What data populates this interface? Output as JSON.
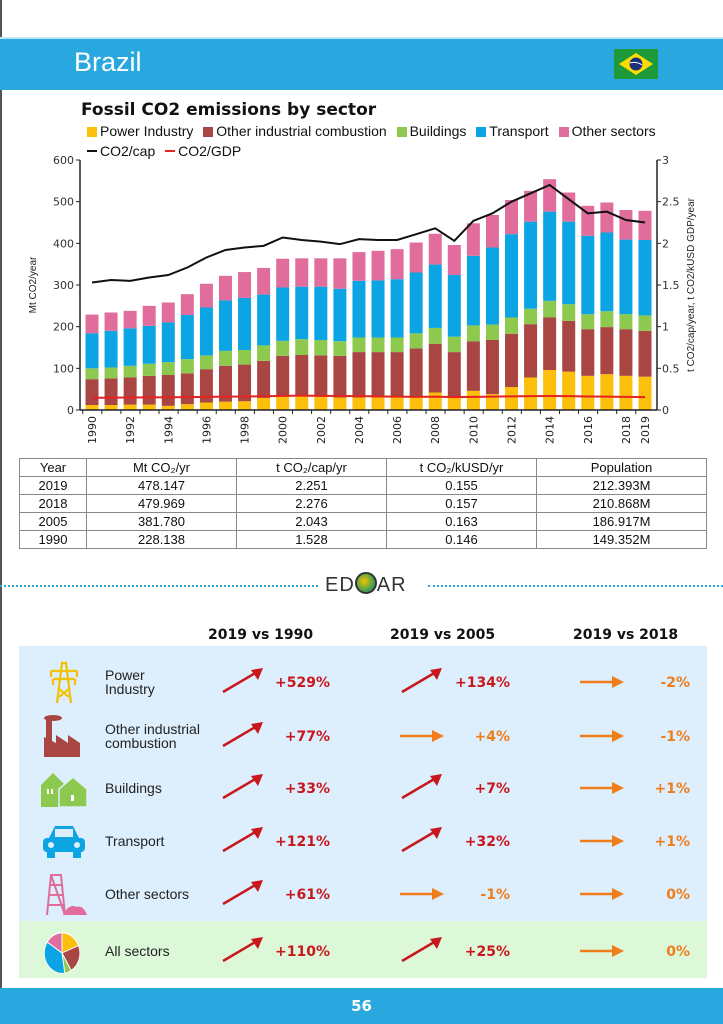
{
  "header": {
    "title": "Brazil",
    "flag": "brazil-flag"
  },
  "chart_data": {
    "type": "bar",
    "stacked": true,
    "title": "Fossil CO2 emissions by sector",
    "ylabel": "Mt CO2/year",
    "y2label": "t CO2/cap/year, t CO2/kUSD GDP/year",
    "ylim": [
      0,
      600
    ],
    "y2lim": [
      0,
      3
    ],
    "yticks": [
      "0",
      "100",
      "200",
      "300",
      "400",
      "500",
      "600"
    ],
    "y2ticks": [
      "0",
      "0.5",
      "1",
      "1.5",
      "2",
      "2.5",
      "3"
    ],
    "categories": [
      "1990",
      "1991",
      "1992",
      "1993",
      "1994",
      "1995",
      "1996",
      "1997",
      "1998",
      "1999",
      "2000",
      "2001",
      "2002",
      "2003",
      "2004",
      "2005",
      "2006",
      "2007",
      "2008",
      "2009",
      "2010",
      "2011",
      "2012",
      "2013",
      "2014",
      "2015",
      "2016",
      "2017",
      "2018",
      "2019"
    ],
    "xtick_labels": [
      "1990",
      "1992",
      "1994",
      "1996",
      "1998",
      "2000",
      "2002",
      "2004",
      "2006",
      "2008",
      "2010",
      "2012",
      "2014",
      "2016",
      "2018",
      "2019"
    ],
    "series": [
      {
        "name": "Power Industry",
        "color": "#fbbf0c",
        "values": [
          12,
          12,
          13,
          13,
          10,
          14,
          18,
          20,
          21,
          29,
          32,
          36,
          32,
          30,
          30,
          30,
          30,
          30,
          42,
          30,
          46,
          38,
          55,
          78,
          96,
          92,
          82,
          86,
          82,
          80
        ]
      },
      {
        "name": "Other industrial combustion",
        "color": "#a94644",
        "values": [
          62,
          64,
          65,
          69,
          74,
          74,
          80,
          86,
          88,
          89,
          98,
          96,
          99,
          100,
          109,
          109,
          109,
          118,
          117,
          109,
          119,
          130,
          128,
          128,
          126,
          122,
          112,
          113,
          112,
          110
        ]
      },
      {
        "name": "Buildings",
        "color": "#8dc94e",
        "values": [
          26,
          26,
          28,
          29,
          31,
          34,
          33,
          36,
          35,
          37,
          36,
          38,
          37,
          35,
          35,
          35,
          35,
          36,
          38,
          37,
          38,
          37,
          39,
          37,
          40,
          40,
          36,
          38,
          36,
          37
        ]
      },
      {
        "name": "Transport",
        "color": "#0ba5e4",
        "values": [
          84,
          88,
          90,
          91,
          95,
          106,
          115,
          121,
          125,
          122,
          128,
          126,
          128,
          126,
          136,
          137,
          140,
          146,
          152,
          148,
          167,
          185,
          200,
          209,
          214,
          198,
          188,
          189,
          179,
          181
        ]
      },
      {
        "name": "Other sectors",
        "color": "#e06d9c",
        "values": [
          45,
          44,
          42,
          48,
          48,
          50,
          57,
          59,
          62,
          64,
          69,
          68,
          68,
          73,
          69,
          71,
          72,
          72,
          74,
          72,
          78,
          78,
          82,
          74,
          78,
          70,
          72,
          72,
          71,
          70
        ]
      }
    ],
    "lines": [
      {
        "name": "CO2/cap",
        "color": "#111111",
        "axis": "right",
        "values": [
          1.53,
          1.56,
          1.55,
          1.59,
          1.62,
          1.71,
          1.83,
          1.92,
          1.95,
          1.97,
          2.07,
          2.04,
          2.02,
          1.99,
          2.05,
          2.04,
          2.04,
          2.11,
          2.18,
          2.03,
          2.27,
          2.36,
          2.5,
          2.6,
          2.7,
          2.53,
          2.36,
          2.38,
          2.28,
          2.25
        ]
      },
      {
        "name": "CO2/GDP",
        "color": "#e3231f",
        "axis": "right",
        "values": [
          0.146,
          0.148,
          0.15,
          0.152,
          0.153,
          0.155,
          0.158,
          0.16,
          0.162,
          0.165,
          0.17,
          0.172,
          0.17,
          0.168,
          0.166,
          0.163,
          0.16,
          0.158,
          0.16,
          0.155,
          0.158,
          0.16,
          0.164,
          0.166,
          0.168,
          0.166,
          0.162,
          0.16,
          0.157,
          0.155
        ]
      }
    ],
    "legend": [
      "Power Industry",
      "Other industrial combustion",
      "Buildings",
      "Transport",
      "Other sectors",
      "CO2/cap",
      "CO2/GDP"
    ]
  },
  "table": {
    "headers": [
      "Year",
      "Mt CO₂/yr",
      "t CO₂/cap/yr",
      "t CO₂/kUSD/yr",
      "Population"
    ],
    "rows": [
      [
        "2019",
        "478.147",
        "2.251",
        "0.155",
        "212.393M"
      ],
      [
        "2018",
        "479.969",
        "2.276",
        "0.157",
        "210.868M"
      ],
      [
        "2005",
        "381.780",
        "2.043",
        "0.163",
        "186.917M"
      ],
      [
        "1990",
        "228.138",
        "1.528",
        "0.146",
        "149.352M"
      ]
    ]
  },
  "logo": {
    "text_left": "ED",
    "text_right": "AR"
  },
  "comparison": {
    "columns": [
      "2019 vs 1990",
      "2019 vs 2005",
      "2019 vs 2018"
    ],
    "rows": [
      {
        "sector": "Power Industry",
        "icon": "power-pylon-icon",
        "values": [
          "+529%",
          "+134%",
          "-2%"
        ],
        "trends": [
          "up",
          "up",
          "flat"
        ]
      },
      {
        "sector": "Other industrial combustion",
        "icon": "factory-icon",
        "values": [
          "+77%",
          "+4%",
          "-1%"
        ],
        "trends": [
          "up",
          "flat",
          "flat"
        ]
      },
      {
        "sector": "Buildings",
        "icon": "houses-icon",
        "values": [
          "+33%",
          "+7%",
          "+1%"
        ],
        "trends": [
          "up",
          "up",
          "flat"
        ]
      },
      {
        "sector": "Transport",
        "icon": "car-icon",
        "values": [
          "+121%",
          "+32%",
          "+1%"
        ],
        "trends": [
          "up",
          "up",
          "flat"
        ]
      },
      {
        "sector": "Other sectors",
        "icon": "mine-tower-icon",
        "values": [
          "+61%",
          "-1%",
          "0%"
        ],
        "trends": [
          "up",
          "flat",
          "flat"
        ]
      },
      {
        "sector": "All sectors",
        "icon": "pie-chart-icon",
        "values": [
          "+110%",
          "+25%",
          "0%"
        ],
        "trends": [
          "up",
          "up",
          "flat"
        ]
      }
    ],
    "colors": {
      "up": "#c8171d",
      "flat": "#ef7d1a"
    }
  },
  "footer": {
    "page_number": "56"
  }
}
